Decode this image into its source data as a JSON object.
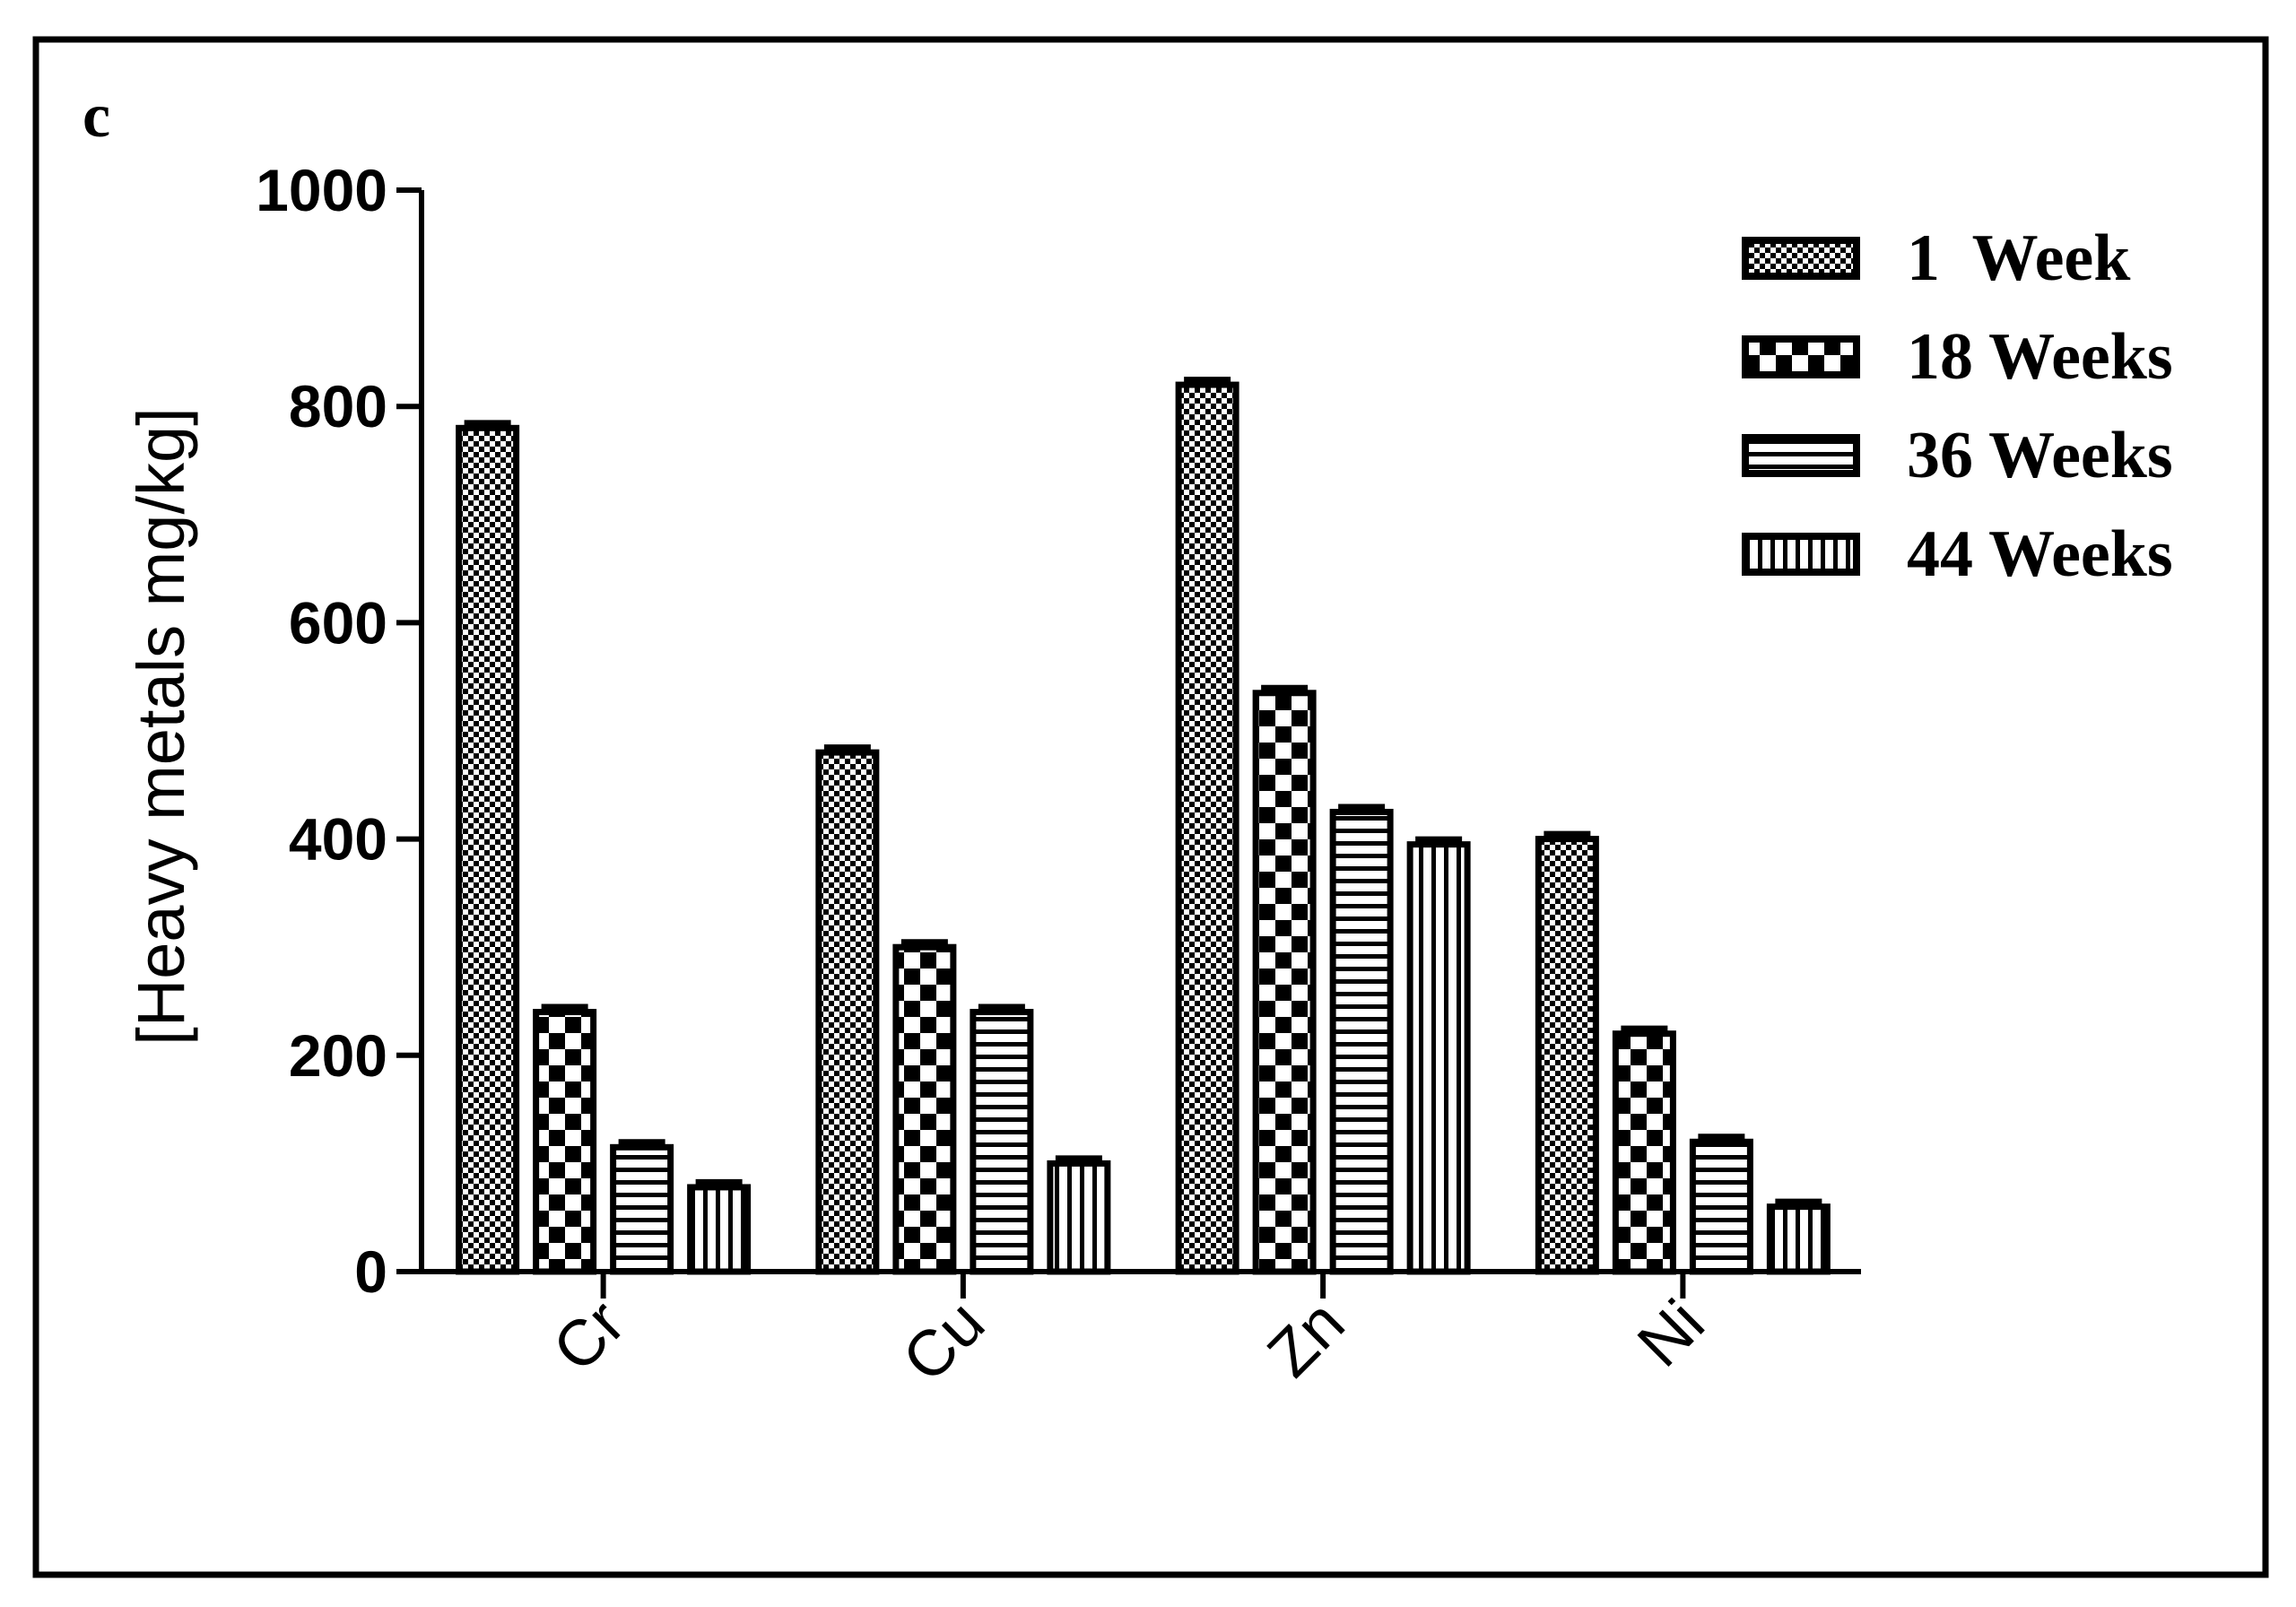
{
  "panel_label": "c",
  "chart_data": {
    "type": "bar",
    "title": "",
    "xlabel": "",
    "ylabel": "[Heavy metals mg/kg]",
    "ylim": [
      0,
      1000
    ],
    "yticks": [
      0,
      200,
      400,
      600,
      800,
      1000
    ],
    "categories": [
      "Cr",
      "Cu",
      "Zn",
      "Ni"
    ],
    "series": [
      {
        "name": "1  Week",
        "pattern": "checker-dense",
        "values": [
          780,
          480,
          820,
          400
        ]
      },
      {
        "name": "18 Weeks",
        "pattern": "checker-large",
        "values": [
          240,
          300,
          535,
          220
        ]
      },
      {
        "name": "36 Weeks",
        "pattern": "horizontal-stripes",
        "values": [
          115,
          240,
          425,
          120
        ]
      },
      {
        "name": "44 Weeks",
        "pattern": "vertical-stripes",
        "values": [
          78,
          100,
          395,
          60
        ]
      }
    ],
    "error_bars": true,
    "grid": false,
    "legend_position": "top-right",
    "colors": {
      "ink": "#000000",
      "background": "#ffffff"
    }
  }
}
